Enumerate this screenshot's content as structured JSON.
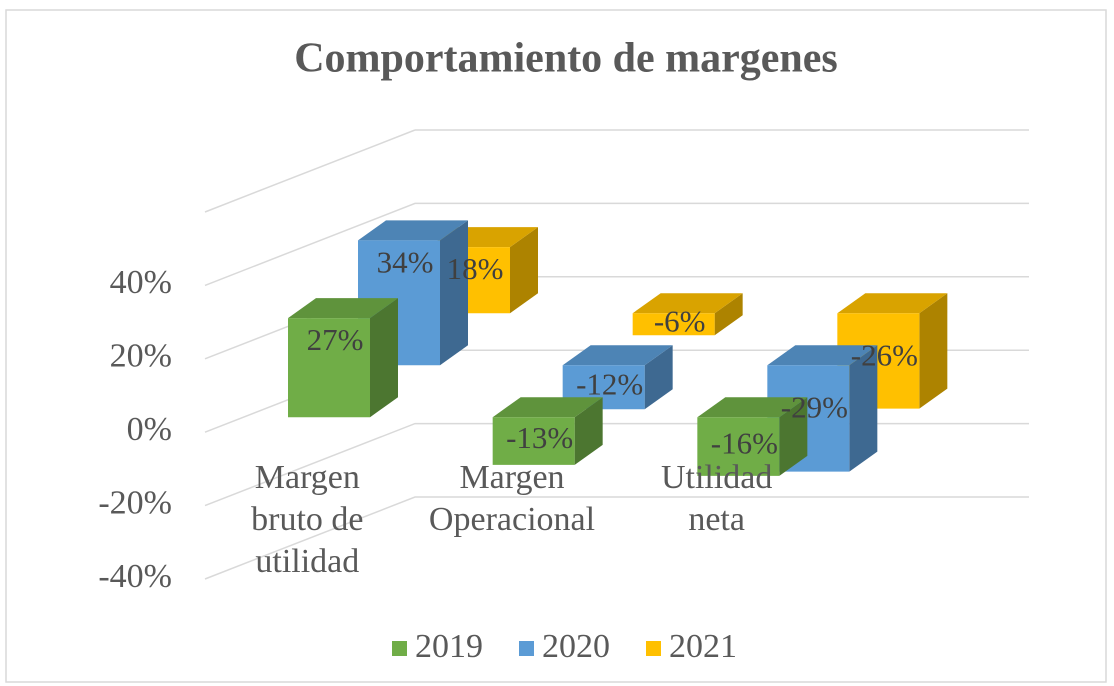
{
  "chart_data": {
    "type": "bar3d",
    "title": "Comportamiento de margenes",
    "categories": [
      "Margen bruto de utilidad",
      "Margen Operacional",
      "Utilidad neta"
    ],
    "series": [
      {
        "name": "2019",
        "color": "#70ad47",
        "values": [
          27,
          -13,
          -16
        ],
        "value_labels": [
          "27%",
          "-13%",
          "-16%"
        ]
      },
      {
        "name": "2020",
        "color": "#5b9bd5",
        "values": [
          34,
          -12,
          -29
        ],
        "value_labels": [
          "34%",
          "-12%",
          "-29%"
        ]
      },
      {
        "name": "2021",
        "color": "#ffc000",
        "values": [
          18,
          -6,
          -26
        ],
        "value_labels": [
          "18%",
          "-6%",
          "-26%"
        ]
      }
    ],
    "ylim": [
      -40,
      60
    ],
    "yticks": [
      {
        "value": -40,
        "label": "-40%"
      },
      {
        "value": -20,
        "label": "-20%"
      },
      {
        "value": 0,
        "label": "0%"
      },
      {
        "value": 20,
        "label": "20%"
      },
      {
        "value": 40,
        "label": "40%"
      }
    ],
    "grid": true,
    "legend": "bottom"
  }
}
